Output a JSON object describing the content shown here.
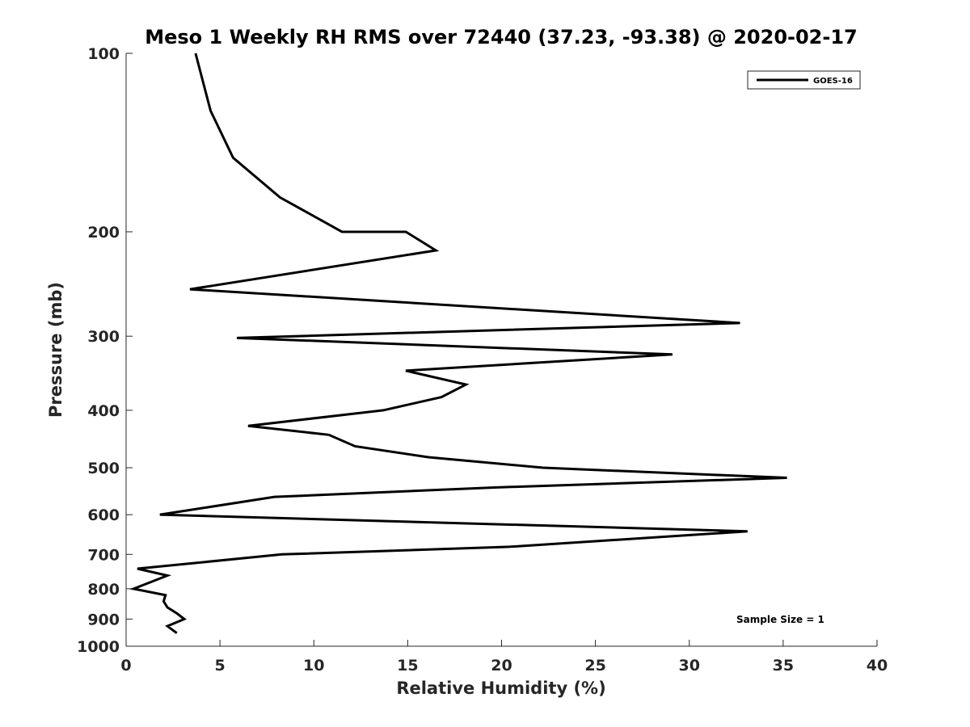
{
  "chart_data": {
    "type": "line",
    "title": "Meso 1 Weekly RH RMS over 72440 (37.23, -93.38) @ 2020-02-17",
    "xlabel": "Relative Humidity (%)",
    "ylabel": "Pressure (mb)",
    "xlim": [
      0,
      40
    ],
    "ylim": [
      100,
      1000
    ],
    "y_scale": "log",
    "y_reversed": true,
    "x_ticks": [
      0,
      5,
      10,
      15,
      20,
      25,
      30,
      35,
      40
    ],
    "x_tick_labels": [
      "0",
      "5",
      "10",
      "15",
      "20",
      "25",
      "30",
      "35",
      "40"
    ],
    "y_ticks": [
      100,
      200,
      300,
      400,
      500,
      600,
      700,
      800,
      900,
      1000
    ],
    "y_tick_labels": [
      "100",
      "200",
      "300",
      "400",
      "500",
      "600",
      "700",
      "800",
      "900",
      "1000"
    ],
    "grid": false,
    "legend_position": "top-right",
    "series": [
      {
        "name": "GOES-16",
        "color": "#000000",
        "points": [
          [
            3.7,
            100
          ],
          [
            4.5,
            125
          ],
          [
            5.7,
            150
          ],
          [
            8.2,
            175
          ],
          [
            11.5,
            200
          ],
          [
            14.9,
            200
          ],
          [
            16.5,
            215
          ],
          [
            3.4,
            250
          ],
          [
            32.7,
            285
          ],
          [
            5.9,
            302
          ],
          [
            29.1,
            322
          ],
          [
            14.9,
            343
          ],
          [
            18.1,
            362
          ],
          [
            16.8,
            380
          ],
          [
            13.7,
            400
          ],
          [
            6.5,
            425
          ],
          [
            10.8,
            440
          ],
          [
            12.2,
            460
          ],
          [
            16.1,
            480
          ],
          [
            22.2,
            500
          ],
          [
            35.2,
            520
          ],
          [
            19.5,
            540
          ],
          [
            7.9,
            560
          ],
          [
            1.8,
            600
          ],
          [
            33.1,
            640
          ],
          [
            20.3,
            680
          ],
          [
            8.3,
            700
          ],
          [
            0.6,
            740
          ],
          [
            2.2,
            760
          ],
          [
            0.4,
            800
          ],
          [
            2.1,
            820
          ],
          [
            2.0,
            840
          ],
          [
            2.2,
            860
          ],
          [
            2.7,
            880
          ],
          [
            3.1,
            900
          ],
          [
            2.2,
            925
          ],
          [
            2.7,
            950
          ]
        ]
      }
    ],
    "annotations": [
      {
        "text": "Sample Size = 1",
        "position": "bottom-right"
      }
    ]
  }
}
